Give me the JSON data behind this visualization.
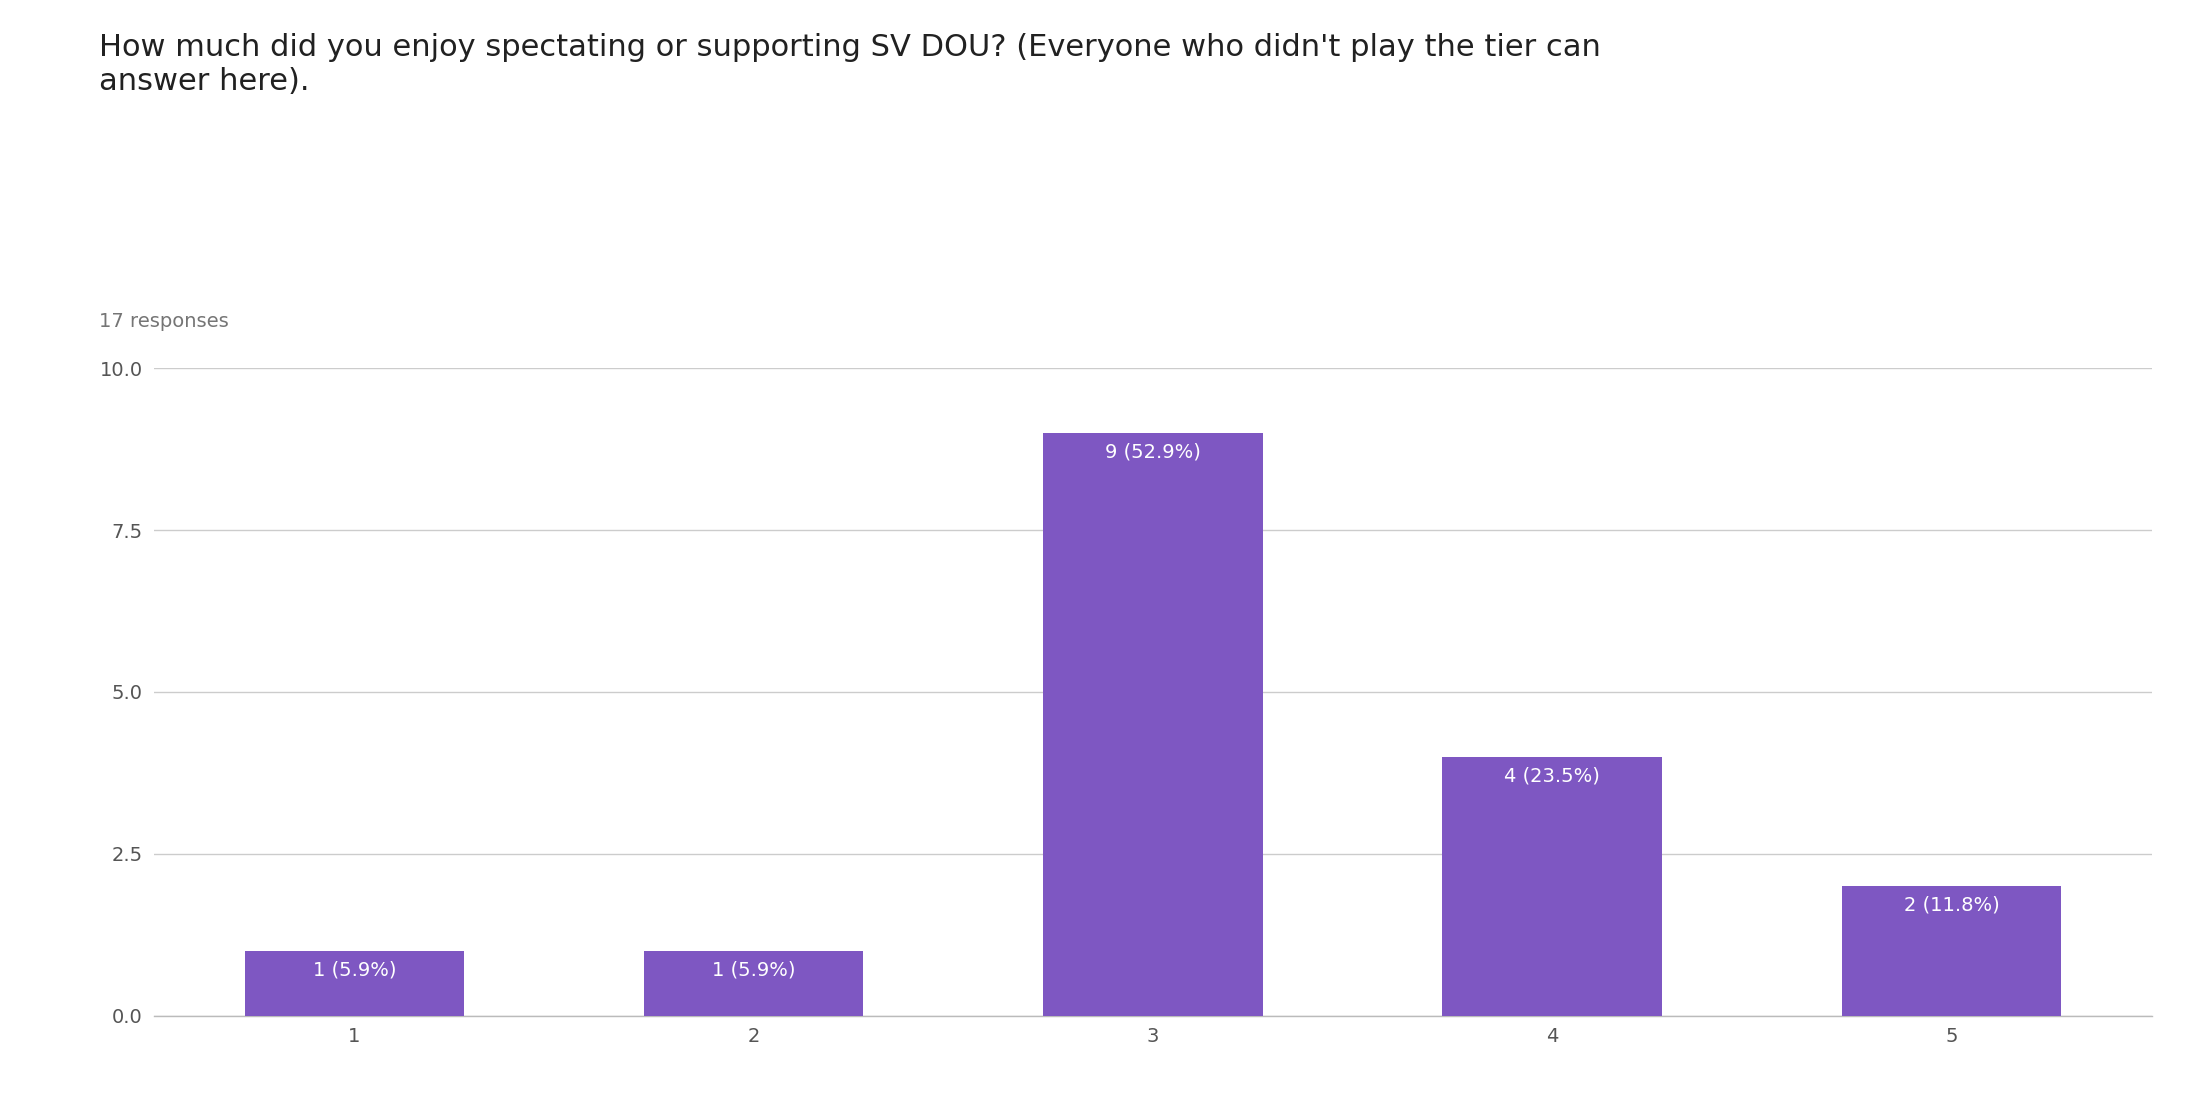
{
  "title_line1": "How much did you enjoy spectating or supporting SV DOU? (Everyone who didn't play the tier can",
  "title_line2": "answer here).",
  "subtitle": "17 responses",
  "categories": [
    1,
    2,
    3,
    4,
    5
  ],
  "values": [
    1,
    1,
    9,
    4,
    2
  ],
  "labels": [
    "1 (5.9%)",
    "1 (5.9%)",
    "9 (52.9%)",
    "4 (23.5%)",
    "2 (11.8%)"
  ],
  "bar_color": "#7E57C2",
  "background_color": "#ffffff",
  "ylim": [
    0,
    10
  ],
  "yticks": [
    0.0,
    2.5,
    5.0,
    7.5,
    10.0
  ],
  "title_fontsize": 22,
  "subtitle_fontsize": 14,
  "label_fontsize": 14,
  "tick_fontsize": 14,
  "label_color": "#ffffff",
  "grid_color": "#cccccc",
  "title_color": "#212121",
  "subtitle_color": "#757575",
  "axis_color": "#888888"
}
